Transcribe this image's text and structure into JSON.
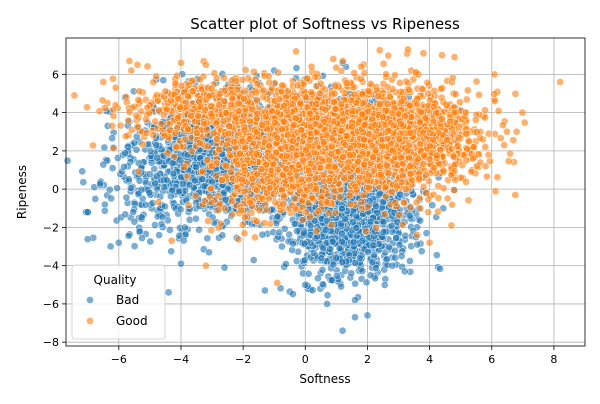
{
  "chart_data": {
    "type": "scatter",
    "title": "Scatter plot of Softness vs Ripeness",
    "xlabel": "Softness",
    "ylabel": "Ripeness",
    "xlim": [
      -7.7,
      9.0
    ],
    "ylim": [
      -8.2,
      7.9
    ],
    "x_ticks": [
      -6,
      -4,
      -2,
      0,
      2,
      4,
      6,
      8
    ],
    "y_ticks": [
      -8,
      -6,
      -4,
      -2,
      0,
      2,
      4,
      6
    ],
    "grid": true,
    "legend": {
      "title": "Quality",
      "placement": "lower-left"
    },
    "point_alpha": 0.6,
    "series": [
      {
        "name": "Bad",
        "color": "#1f77b4",
        "clusters": [
          {
            "cx": -2.6,
            "cy": 1.6,
            "sx": 1.35,
            "sy": 1.45,
            "n": 1400
          },
          {
            "cx": 1.4,
            "cy": -1.3,
            "sx": 0.95,
            "sy": 1.55,
            "n": 1600
          },
          {
            "cx": -0.3,
            "cy": 3.2,
            "sx": 1.7,
            "sy": 1.1,
            "n": 350
          },
          {
            "cx": -5.0,
            "cy": -0.6,
            "sx": 0.9,
            "sy": 1.4,
            "n": 120
          }
        ],
        "points": [
          [
            -7.0,
            -1.2
          ],
          [
            -6.6,
            0.3
          ],
          [
            -6.2,
            1.1
          ],
          [
            -6.0,
            -2.8
          ],
          [
            -5.5,
            -1.7
          ],
          [
            -4.4,
            -5.4
          ],
          [
            -4.0,
            -3.9
          ],
          [
            -3.1,
            -3.3
          ],
          [
            -2.6,
            -4.1
          ],
          [
            1.2,
            -7.4
          ],
          [
            1.6,
            -6.7
          ],
          [
            0.7,
            -6.0
          ],
          [
            2.0,
            -6.6
          ],
          [
            3.2,
            -4.3
          ],
          [
            1.6,
            -5.8
          ],
          [
            0.0,
            -5.0
          ],
          [
            2.8,
            -4.0
          ],
          [
            -2.4,
            5.3
          ],
          [
            -1.0,
            6.2
          ],
          [
            -0.3,
            5.8
          ],
          [
            1.2,
            6.6
          ],
          [
            0.4,
            5.4
          ],
          [
            -5.8,
            4.8
          ],
          [
            -4.9,
            4.4
          ],
          [
            -3.3,
            4.9
          ],
          [
            3.1,
            -3.5
          ],
          [
            3.6,
            -2.9
          ],
          [
            3.9,
            -2.3
          ],
          [
            -1.3,
            -5.3
          ],
          [
            -3.9,
            2.9
          ]
        ]
      },
      {
        "name": "Good",
        "color": "#ff7f0e",
        "clusters": [
          {
            "cx": -3.0,
            "cy": 4.0,
            "sx": 1.6,
            "sy": 0.95,
            "n": 550
          },
          {
            "cx": 2.7,
            "cy": 2.6,
            "sx": 1.4,
            "sy": 1.35,
            "n": 1600
          },
          {
            "cx": -0.8,
            "cy": 1.0,
            "sx": 1.2,
            "sy": 1.3,
            "n": 700
          },
          {
            "cx": 0.6,
            "cy": 3.6,
            "sx": 1.6,
            "sy": 1.1,
            "n": 600
          }
        ],
        "points": [
          [
            8.2,
            5.6
          ],
          [
            6.8,
            3.0
          ],
          [
            6.4,
            2.3
          ],
          [
            6.1,
            4.6
          ],
          [
            5.9,
            2.9
          ],
          [
            5.4,
            1.6
          ],
          [
            5.0,
            0.6
          ],
          [
            4.7,
            -1.9
          ],
          [
            4.0,
            -2.8
          ],
          [
            3.6,
            -2.4
          ],
          [
            -0.9,
            -4.9
          ],
          [
            -3.2,
            -4.0
          ],
          [
            -4.3,
            -2.7
          ],
          [
            -6.5,
            5.6
          ],
          [
            -6.1,
            5.3
          ],
          [
            -5.6,
            6.2
          ],
          [
            -5.4,
            6.5
          ],
          [
            -4.8,
            5.9
          ],
          [
            -4.0,
            6.6
          ],
          [
            -3.2,
            6.5
          ],
          [
            -0.3,
            7.2
          ],
          [
            0.9,
            6.8
          ],
          [
            1.8,
            6.4
          ],
          [
            3.3,
            7.3
          ],
          [
            3.8,
            7.1
          ],
          [
            4.4,
            7.0
          ],
          [
            4.8,
            6.9
          ],
          [
            2.6,
            6.0
          ],
          [
            0.2,
            6.4
          ],
          [
            -2.2,
            5.2
          ]
        ]
      }
    ]
  }
}
